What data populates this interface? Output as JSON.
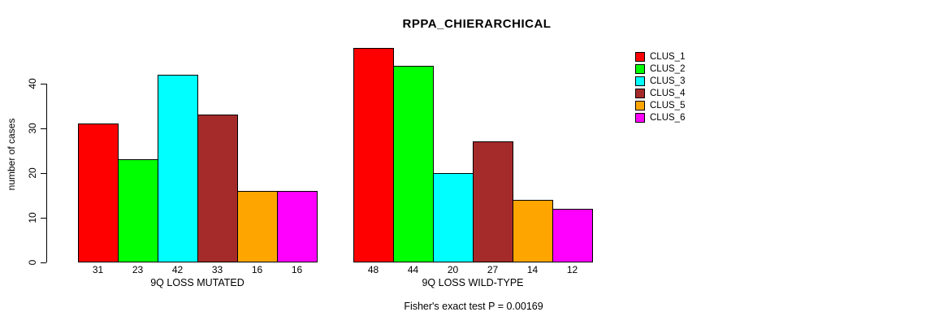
{
  "chart_data": {
    "type": "bar",
    "title": "RPPA_CHIERARCHICAL",
    "ylabel": "number of cases",
    "xlabel": "",
    "yticks": [
      0,
      10,
      20,
      30,
      40
    ],
    "ylim": [
      0,
      50
    ],
    "grid": false,
    "legend_position": "right",
    "categories": [
      "CLUS_1",
      "CLUS_2",
      "CLUS_3",
      "CLUS_4",
      "CLUS_5",
      "CLUS_6"
    ],
    "series_colors": [
      "#FF0000",
      "#00FF00",
      "#00FFFF",
      "#A52A2A",
      "#FFA500",
      "#FF00FF"
    ],
    "groups": [
      {
        "label": "9Q LOSS MUTATED",
        "values": [
          31,
          23,
          42,
          33,
          16,
          16
        ]
      },
      {
        "label": "9Q LOSS WILD-TYPE",
        "values": [
          48,
          44,
          20,
          27,
          14,
          12
        ]
      }
    ],
    "annotation": "Fisher's exact test P = 0.00169",
    "colors": {
      "background": "#FFFFFF",
      "axis": "#000000",
      "bar_border": "#000000",
      "text": "#000000"
    }
  }
}
